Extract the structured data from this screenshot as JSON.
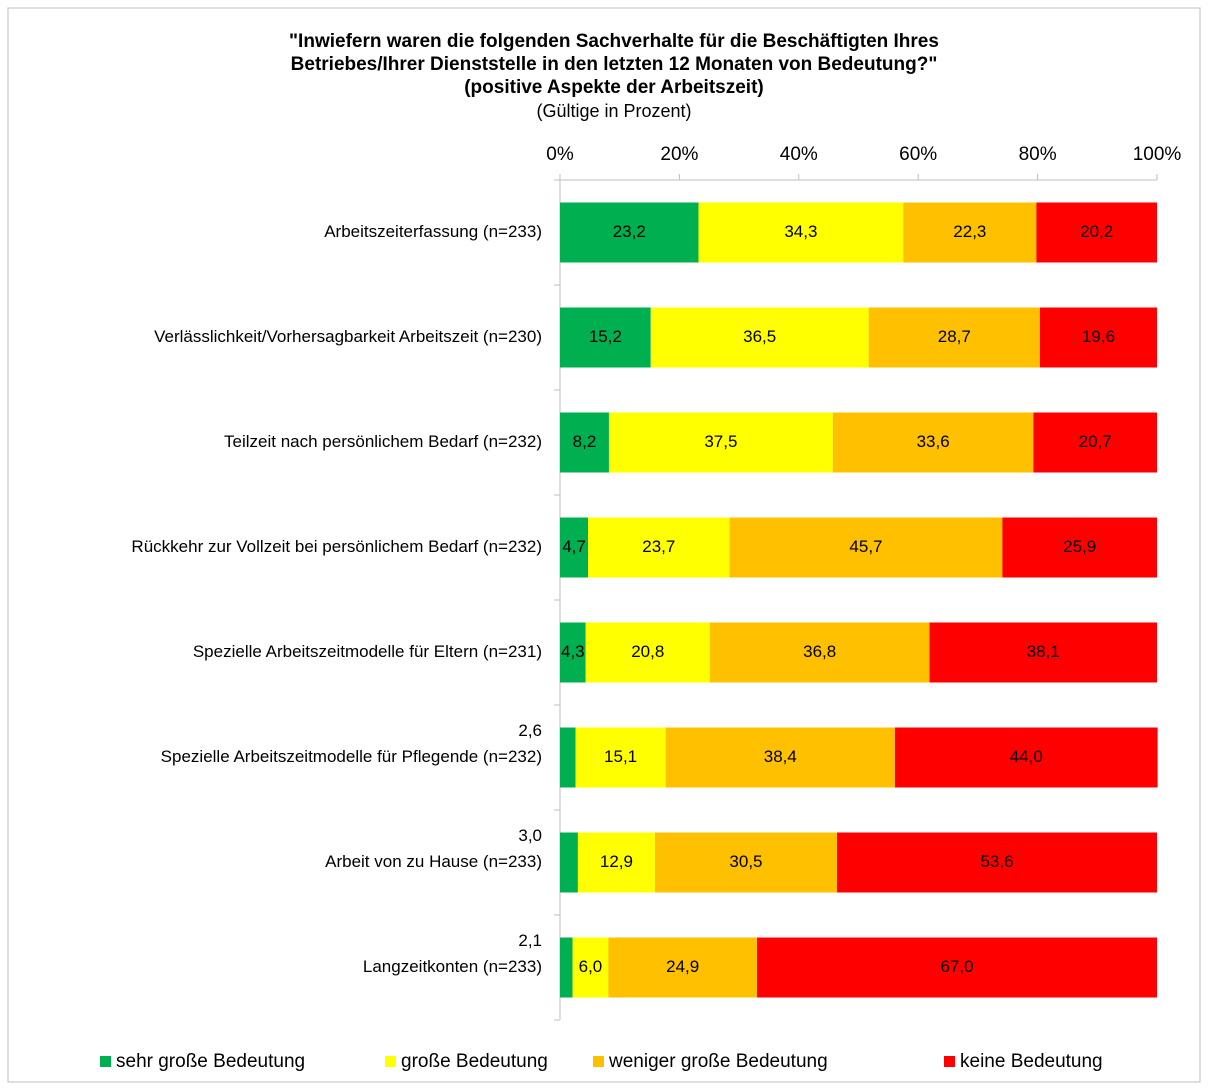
{
  "chart_data": {
    "type": "stacked_barh",
    "title": [
      "\"Inwiefern waren die folgenden Sachverhalte für die Beschäftigten Ihres",
      "Betriebes/Ihrer Dienststelle in den letzten 12 Monaten von Bedeutung?\""
    ],
    "subtitle": "(positive Aspekte der Arbeitszeit)",
    "note": "(Gültige in Prozent)",
    "categories": [
      "Arbeitszeiterfassung (n=233)",
      "Verlässlichkeit/Vorhersagbarkeit Arbeitszeit (n=230)",
      "Teilzeit nach persönlichem Bedarf (n=232)",
      "Rückkehr zur Vollzeit bei persönlichem Bedarf (n=232)",
      "Spezielle Arbeitszeitmodelle für Eltern (n=231)",
      "Spezielle Arbeitszeitmodelle für Pflegende (n=232)",
      "Arbeit von zu Hause (n=233)",
      "Langzeitkonten  (n=233)"
    ],
    "series": [
      {
        "name": "sehr große Bedeutung",
        "color": "#00b050",
        "values": [
          23.2,
          15.2,
          8.2,
          4.7,
          4.3,
          2.6,
          3.0,
          2.1
        ],
        "value_labels": [
          "23,2",
          "15,2",
          "8,2",
          "4,7",
          "4,3",
          "2,6",
          "3,0",
          "2,1"
        ]
      },
      {
        "name": "große Bedeutung",
        "color": "#ffff00",
        "values": [
          34.3,
          36.5,
          37.5,
          23.7,
          20.8,
          15.1,
          12.9,
          6.0
        ],
        "value_labels": [
          "34,3",
          "36,5",
          "37,5",
          "23,7",
          "20,8",
          "15,1",
          "12,9",
          "6,0"
        ]
      },
      {
        "name": "weniger große Bedeutung",
        "color": "#ffc000",
        "values": [
          22.3,
          28.7,
          33.6,
          45.7,
          36.8,
          38.4,
          30.5,
          24.9
        ],
        "value_labels": [
          "22,3",
          "28,7",
          "33,6",
          "45,7",
          "36,8",
          "38,4",
          "30,5",
          "24,9"
        ]
      },
      {
        "name": "keine Bedeutung",
        "color": "#ff0000",
        "values": [
          20.2,
          19.6,
          20.7,
          25.9,
          38.1,
          44.0,
          53.6,
          67.0
        ],
        "value_labels": [
          "20,2",
          "19,6",
          "20,7",
          "25,9",
          "38,1",
          "44,0",
          "53,6",
          "67,0"
        ]
      }
    ],
    "xlim": [
      0,
      100
    ],
    "xticks": [
      {
        "value": 0,
        "label": "0%"
      },
      {
        "value": 20,
        "label": "20%"
      },
      {
        "value": 40,
        "label": "40%"
      },
      {
        "value": 60,
        "label": "60%"
      },
      {
        "value": 80,
        "label": "80%"
      },
      {
        "value": 100,
        "label": "100%"
      }
    ],
    "legend": "bottom"
  }
}
